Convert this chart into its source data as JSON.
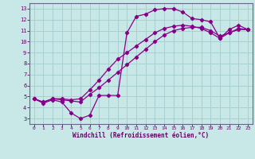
{
  "xlabel": "Windchill (Refroidissement éolien,°C)",
  "bg_color": "#c8e8e8",
  "grid_color": "#a8d0d0",
  "line_color": "#880088",
  "spine_color": "#666688",
  "tick_color": "#660066",
  "xlim": [
    -0.5,
    23.5
  ],
  "ylim": [
    2.5,
    13.5
  ],
  "xticks": [
    0,
    1,
    2,
    3,
    4,
    5,
    6,
    7,
    8,
    9,
    10,
    11,
    12,
    13,
    14,
    15,
    16,
    17,
    18,
    19,
    20,
    21,
    22,
    23
  ],
  "yticks": [
    3,
    4,
    5,
    6,
    7,
    8,
    9,
    10,
    11,
    12,
    13
  ],
  "line1_x": [
    0,
    1,
    2,
    3,
    4,
    5,
    6,
    7,
    8,
    9,
    10,
    11,
    12,
    13,
    14,
    15,
    16,
    17,
    18,
    19,
    20,
    21,
    22,
    23
  ],
  "line1_y": [
    4.8,
    4.4,
    4.7,
    4.5,
    3.5,
    3.0,
    3.3,
    5.1,
    5.1,
    5.1,
    10.8,
    12.3,
    12.5,
    12.9,
    13.0,
    13.0,
    12.7,
    12.1,
    12.0,
    11.8,
    10.3,
    11.1,
    11.5,
    11.1
  ],
  "line2_x": [
    0,
    1,
    2,
    3,
    4,
    5,
    6,
    7,
    8,
    9,
    10,
    11,
    12,
    13,
    14,
    15,
    16,
    17,
    18,
    19,
    20,
    21,
    22,
    23
  ],
  "line2_y": [
    4.8,
    4.5,
    4.8,
    4.7,
    4.6,
    4.5,
    5.2,
    5.8,
    6.5,
    7.2,
    7.9,
    8.6,
    9.3,
    10.0,
    10.6,
    11.0,
    11.2,
    11.3,
    11.3,
    11.0,
    10.5,
    10.8,
    11.1,
    11.1
  ],
  "line3_x": [
    0,
    1,
    2,
    3,
    4,
    5,
    6,
    7,
    8,
    9,
    10,
    11,
    12,
    13,
    14,
    15,
    16,
    17,
    18,
    19,
    20,
    21,
    22,
    23
  ],
  "line3_y": [
    4.8,
    4.5,
    4.8,
    4.8,
    4.7,
    4.8,
    5.6,
    6.5,
    7.5,
    8.4,
    9.0,
    9.6,
    10.2,
    10.8,
    11.2,
    11.4,
    11.5,
    11.4,
    11.2,
    10.8,
    10.3,
    10.8,
    11.2,
    11.1
  ]
}
